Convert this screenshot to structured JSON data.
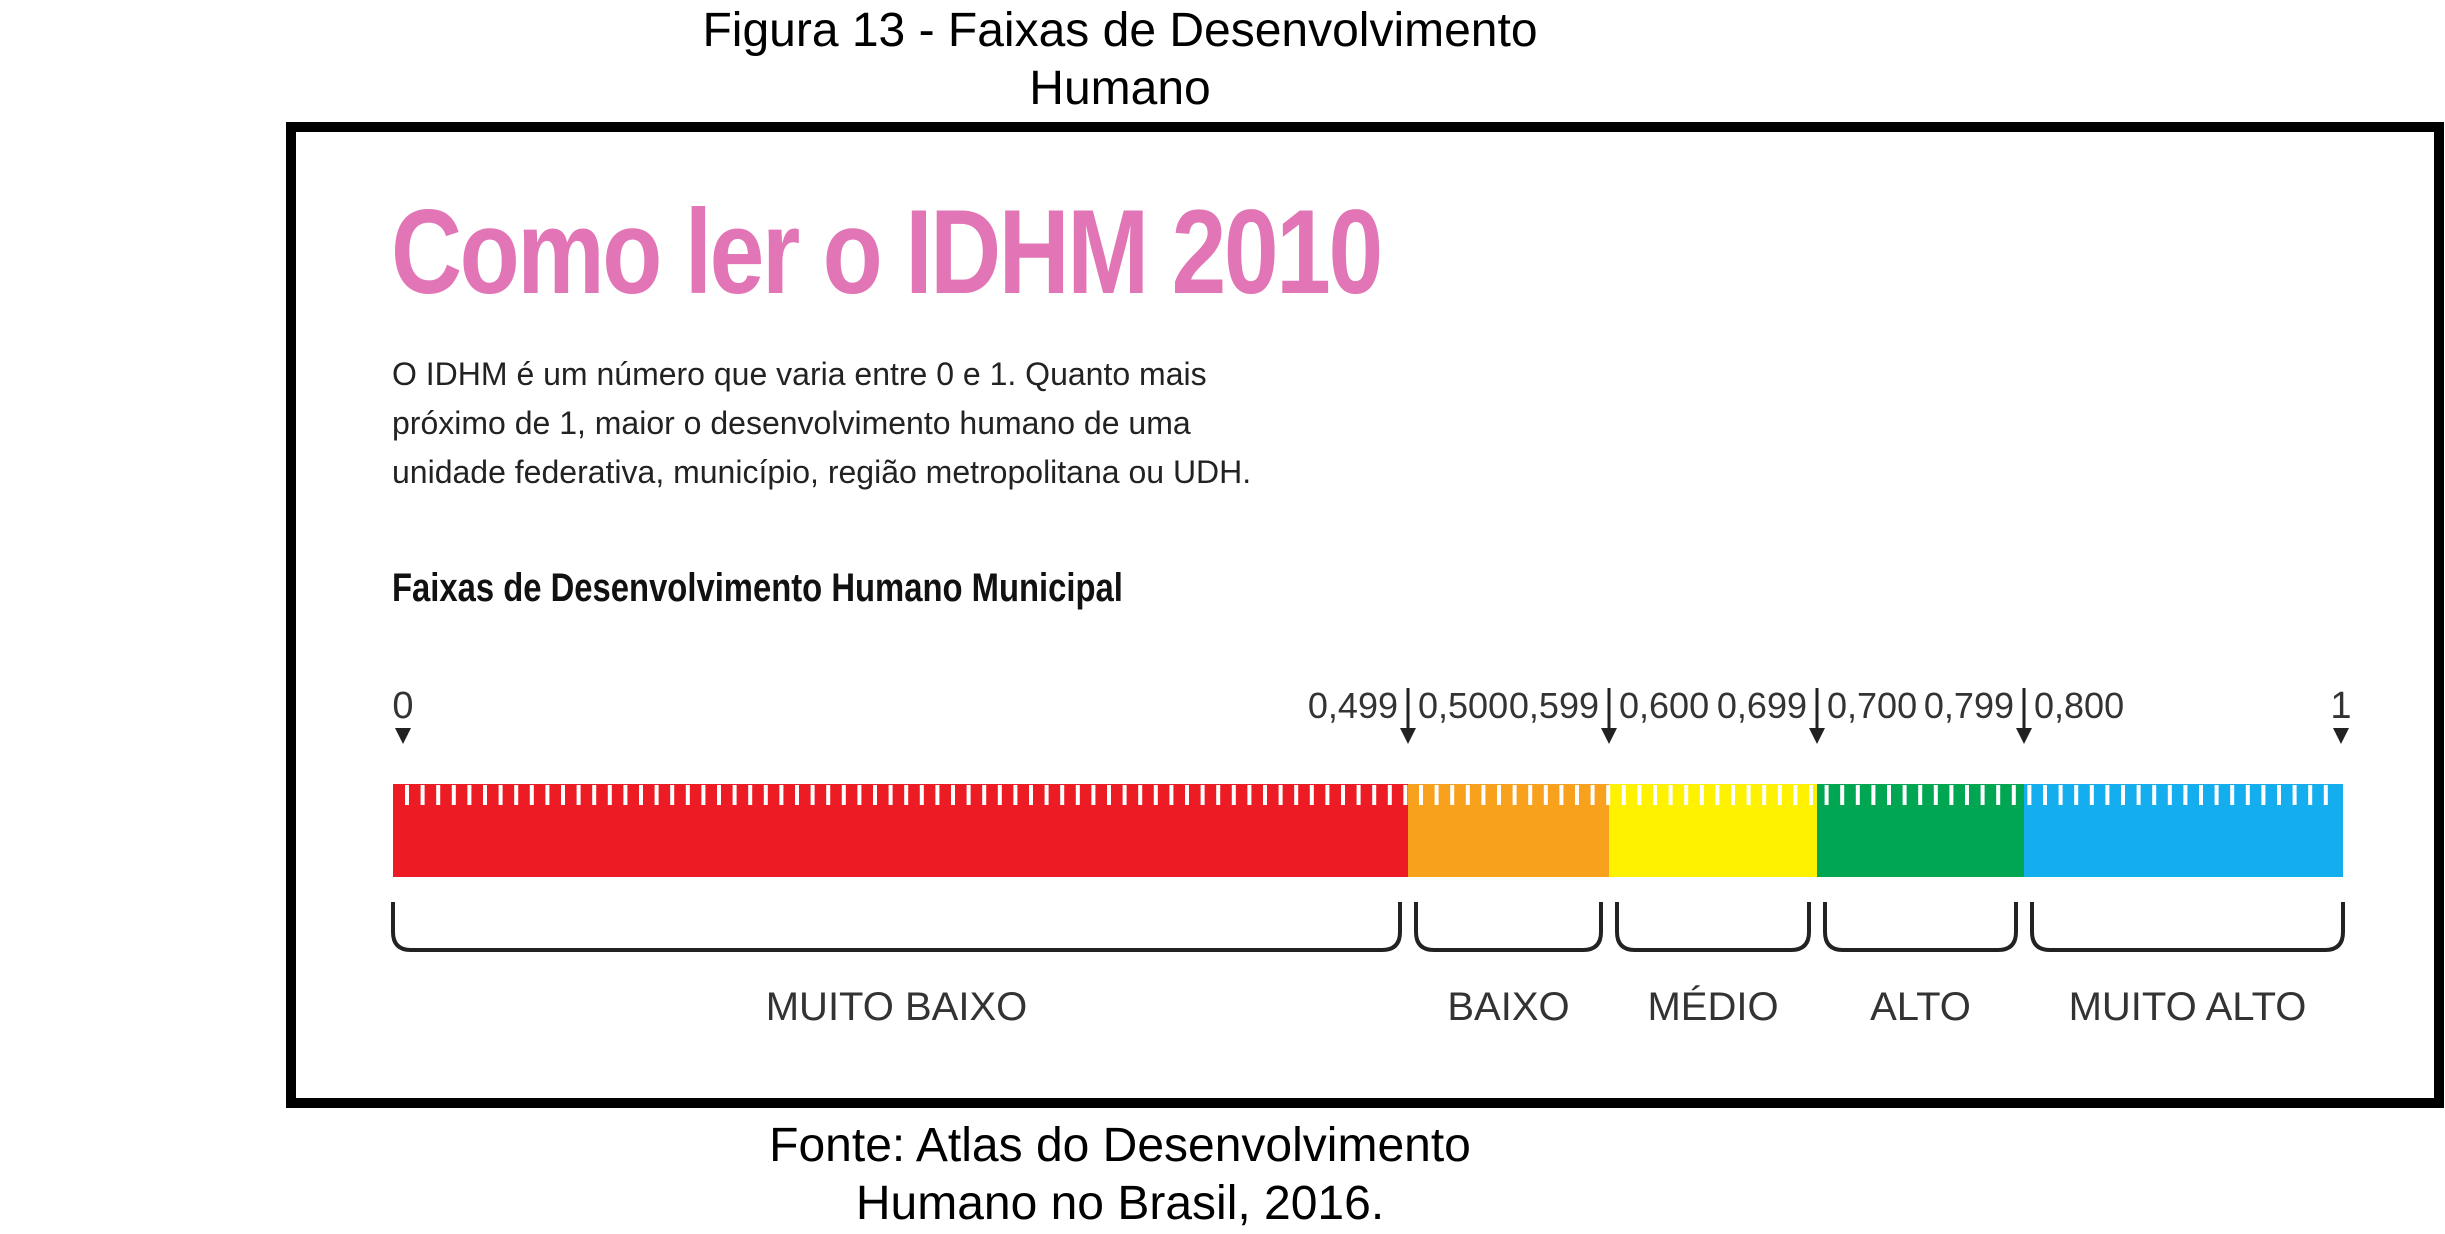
{
  "figure_caption": {
    "line1": "Figura 13 - Faixas de Desenvolvimento",
    "line2": "Humano"
  },
  "panel": {
    "title": "Como ler o IDHM 2010",
    "intro_lines": [
      "O IDHM é um número que varia entre 0 e 1. Quanto mais",
      "próximo de 1, maior o desenvolvimento humano de uma",
      "unidade federativa, município, região metropolitana ou UDH."
    ],
    "scale_heading": "Faixas  de Desenvolvimento Humano Municipal",
    "title_color": "#e275b5"
  },
  "scale": {
    "start_label": "0",
    "end_label": "1",
    "bands": [
      {
        "name": "MUITO BAIXO",
        "from": 0.0,
        "to": 0.499,
        "upper_label": "0,499",
        "color": "#ed1c24"
      },
      {
        "name": "BAIXO",
        "from": 0.5,
        "to": 0.599,
        "lower_label": "0,500",
        "upper_label": "0,599",
        "color": "#f7a11c"
      },
      {
        "name": "MÉDIO",
        "from": 0.6,
        "to": 0.699,
        "lower_label": "0,600",
        "upper_label": "0,699",
        "color": "#fff200"
      },
      {
        "name": "ALTO",
        "from": 0.7,
        "to": 0.799,
        "lower_label": "0,700",
        "upper_label": "0,799",
        "color": "#00a651"
      },
      {
        "name": "MUITO ALTO",
        "from": 0.8,
        "to": 1.0,
        "lower_label": "0,800",
        "color": "#14aeef"
      }
    ]
  },
  "source_caption": {
    "line1": "Fonte: Atlas do Desenvolvimento",
    "line2": "Humano no Brasil, 2016."
  }
}
